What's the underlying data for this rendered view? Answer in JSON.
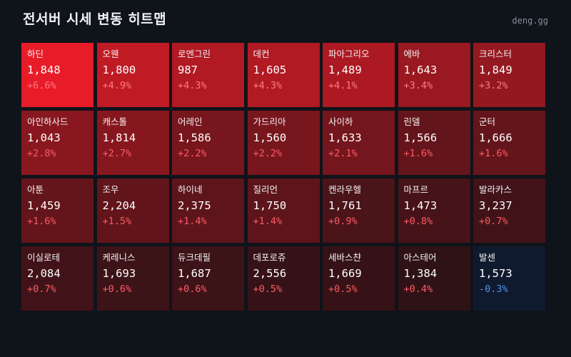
{
  "header": {
    "title": "전서버 시세 변동 히트맵",
    "brand": "deng.gg"
  },
  "colors": {
    "background": "#0f131a",
    "positive_text": "#ff5a66",
    "positive_text_on_bright": "#ff7a82",
    "negative_text": "#4f8ff0",
    "negative_bg": "#101a2e"
  },
  "chart_data": {
    "type": "heatmap",
    "title": "전서버 시세 변동 히트맵",
    "columns": 7,
    "items": [
      {
        "name": "하딘",
        "price": "1,848",
        "change": "+6.6%",
        "value": 6.6
      },
      {
        "name": "오웬",
        "price": "1,800",
        "change": "+4.9%",
        "value": 4.9
      },
      {
        "name": "로엔그린",
        "price": "987",
        "change": "+4.3%",
        "value": 4.3
      },
      {
        "name": "데컨",
        "price": "1,605",
        "change": "+4.3%",
        "value": 4.3
      },
      {
        "name": "파아그리오",
        "price": "1,489",
        "change": "+4.1%",
        "value": 4.1
      },
      {
        "name": "에바",
        "price": "1,643",
        "change": "+3.4%",
        "value": 3.4
      },
      {
        "name": "크리스터",
        "price": "1,849",
        "change": "+3.2%",
        "value": 3.2
      },
      {
        "name": "아인하사드",
        "price": "1,043",
        "change": "+2.8%",
        "value": 2.8
      },
      {
        "name": "캐스톨",
        "price": "1,814",
        "change": "+2.7%",
        "value": 2.7
      },
      {
        "name": "어레인",
        "price": "1,586",
        "change": "+2.2%",
        "value": 2.2
      },
      {
        "name": "가드리아",
        "price": "1,560",
        "change": "+2.2%",
        "value": 2.2
      },
      {
        "name": "사이하",
        "price": "1,633",
        "change": "+2.1%",
        "value": 2.1
      },
      {
        "name": "린델",
        "price": "1,566",
        "change": "+1.6%",
        "value": 1.6
      },
      {
        "name": "군터",
        "price": "1,666",
        "change": "+1.6%",
        "value": 1.6
      },
      {
        "name": "아툰",
        "price": "1,459",
        "change": "+1.6%",
        "value": 1.6
      },
      {
        "name": "조우",
        "price": "2,204",
        "change": "+1.5%",
        "value": 1.5
      },
      {
        "name": "하이네",
        "price": "2,375",
        "change": "+1.4%",
        "value": 1.4
      },
      {
        "name": "질리언",
        "price": "1,750",
        "change": "+1.4%",
        "value": 1.4
      },
      {
        "name": "켄라우헬",
        "price": "1,761",
        "change": "+0.9%",
        "value": 0.9
      },
      {
        "name": "마프르",
        "price": "1,473",
        "change": "+0.8%",
        "value": 0.8
      },
      {
        "name": "발라카스",
        "price": "3,237",
        "change": "+0.7%",
        "value": 0.7
      },
      {
        "name": "이실로테",
        "price": "2,084",
        "change": "+0.7%",
        "value": 0.7
      },
      {
        "name": "케레니스",
        "price": "1,693",
        "change": "+0.6%",
        "value": 0.6
      },
      {
        "name": "듀크데필",
        "price": "1,687",
        "change": "+0.6%",
        "value": 0.6
      },
      {
        "name": "데포로쥬",
        "price": "2,556",
        "change": "+0.5%",
        "value": 0.5
      },
      {
        "name": "세바스챤",
        "price": "1,669",
        "change": "+0.5%",
        "value": 0.5
      },
      {
        "name": "아스테어",
        "price": "1,384",
        "change": "+0.4%",
        "value": 0.4
      },
      {
        "name": "발센",
        "price": "1,573",
        "change": "-0.3%",
        "value": -0.3
      }
    ]
  }
}
